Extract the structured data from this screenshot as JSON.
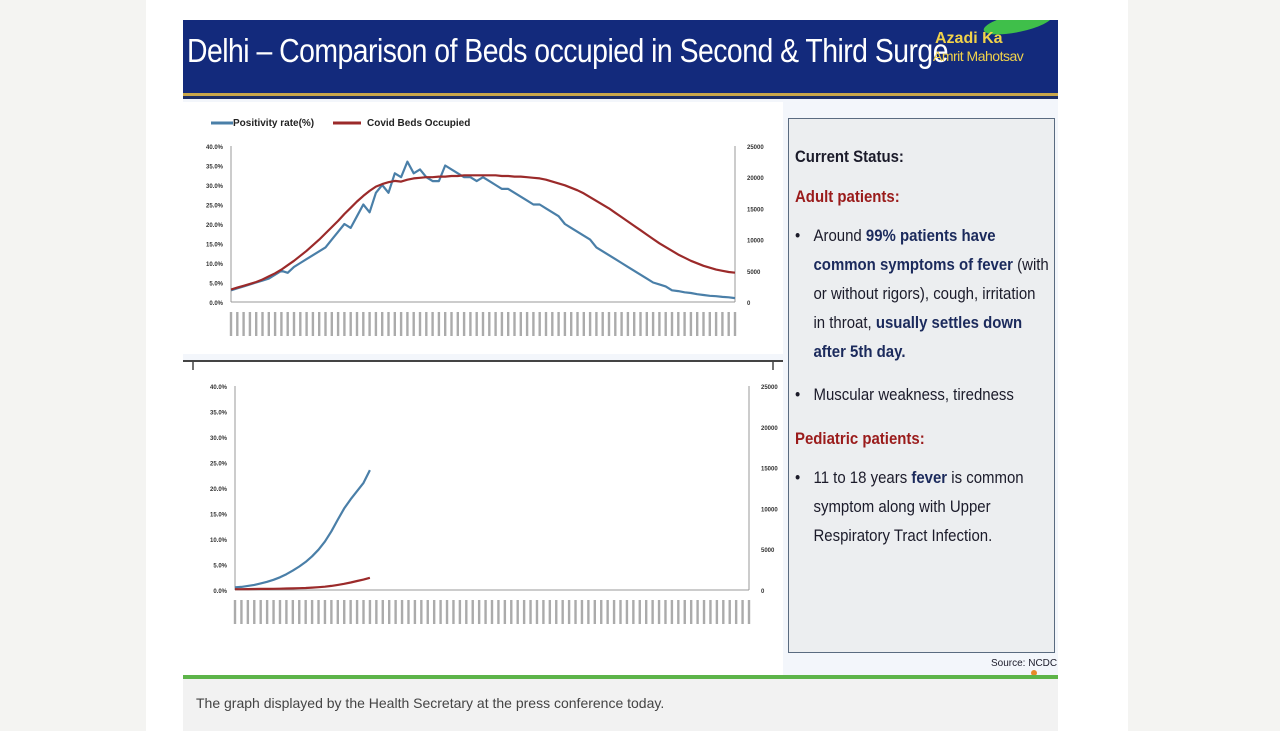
{
  "slide": {
    "title": "Delhi – Comparison of Beds occupied in Second & Third Surge",
    "logo_line1": "Azadi Ka",
    "logo_line2": "Amrit Mahotsav"
  },
  "status_panel": {
    "heading": "Current Status:",
    "adult_heading": "Adult patients:",
    "adult_items": [
      {
        "pre": "Around ",
        "bold": "99% patients have common symptoms of fever",
        "post": " (with or without rigors), cough, irritation in throat, ",
        "bold2": "usually settles down after 5th day."
      },
      {
        "pre": "Muscular weakness, tiredness"
      }
    ],
    "pediatric_heading": "Pediatric patients:",
    "pediatric_items": [
      {
        "pre": "11 to 18 years ",
        "bold": "fever",
        "post": " is common symptom along with Upper Respiratory Tract Infection."
      }
    ]
  },
  "source": "Source: NCDC",
  "caption": "The graph displayed by the Health Secretary at the press conference today.",
  "chart_data": [
    {
      "type": "line",
      "legend": [
        "Positivity rate(%)",
        "Covid Beds Occupied"
      ],
      "legend_position": "top-left",
      "left_ticks": [
        "40.0%",
        "35.0%",
        "30.0%",
        "25.0%",
        "20.0%",
        "15.0%",
        "10.0%",
        "5.0%",
        "0.0%"
      ],
      "right_ticks": [
        "25000",
        "20000",
        "15000",
        "10000",
        "5000",
        "0"
      ],
      "ylim_left": [
        0,
        40
      ],
      "ylim_right": [
        0,
        25000
      ],
      "series": [
        {
          "name": "Positivity rate(%)",
          "color": "#4a7fa8",
          "axis": "left",
          "values": [
            3,
            3.5,
            4,
            4.5,
            5,
            5.5,
            6,
            7,
            8,
            7.5,
            9,
            10,
            11,
            12,
            13,
            14,
            16,
            18,
            20,
            19,
            22,
            25,
            23,
            28,
            30,
            28,
            33,
            32,
            36,
            33,
            34,
            32,
            31,
            31,
            35,
            34,
            33,
            32,
            32,
            31,
            32,
            31,
            30,
            29,
            29,
            28,
            27,
            26,
            25,
            25,
            24,
            23,
            22,
            20,
            19,
            18,
            17,
            16,
            14,
            13,
            12,
            11,
            10,
            9,
            8,
            7,
            6,
            5,
            4.5,
            4,
            3,
            2.8,
            2.5,
            2.3,
            2,
            1.8,
            1.6,
            1.5,
            1.3,
            1.2,
            1
          ]
        },
        {
          "name": "Covid Beds Occupied",
          "color": "#9b2a2a",
          "axis": "right",
          "values": [
            2000,
            2300,
            2600,
            2900,
            3200,
            3600,
            4100,
            4600,
            5200,
            5900,
            6600,
            7400,
            8200,
            9100,
            10000,
            11000,
            12000,
            13000,
            14100,
            15100,
            16100,
            17000,
            17800,
            18500,
            18900,
            19200,
            19400,
            19300,
            19600,
            19800,
            19900,
            20000,
            20000,
            20100,
            20100,
            20200,
            20200,
            20300,
            20300,
            20300,
            20300,
            20300,
            20300,
            20200,
            20200,
            20100,
            20100,
            20000,
            19900,
            19800,
            19600,
            19300,
            19000,
            18700,
            18300,
            17900,
            17400,
            16800,
            16200,
            15600,
            15000,
            14300,
            13600,
            12900,
            12200,
            11500,
            10800,
            10100,
            9400,
            8800,
            8200,
            7600,
            7100,
            6600,
            6200,
            5800,
            5500,
            5200,
            5000,
            4800,
            4700
          ]
        }
      ],
      "x_points": 81
    },
    {
      "type": "line",
      "left_ticks": [
        "40.0%",
        "35.0%",
        "30.0%",
        "25.0%",
        "20.0%",
        "15.0%",
        "10.0%",
        "5.0%",
        "0.0%"
      ],
      "right_ticks": [
        "25000",
        "20000",
        "15000",
        "10000",
        "5000",
        "0"
      ],
      "ylim_left": [
        0,
        40
      ],
      "ylim_right": [
        0,
        25000
      ],
      "series": [
        {
          "name": "Positivity rate(%)",
          "color": "#4a7fa8",
          "axis": "left",
          "values": [
            0.5,
            0.6,
            0.8,
            1.0,
            1.3,
            1.6,
            2.0,
            2.5,
            3.1,
            3.8,
            4.6,
            5.5,
            6.6,
            7.9,
            9.5,
            11.5,
            13.8,
            16.0,
            17.8,
            19.4,
            21.0,
            23.5
          ]
        },
        {
          "name": "Covid Beds Occupied",
          "color": "#9b2a2a",
          "axis": "right",
          "values": [
            100,
            100,
            110,
            120,
            130,
            140,
            150,
            160,
            180,
            200,
            220,
            250,
            290,
            340,
            410,
            500,
            620,
            760,
            920,
            1100,
            1280,
            1500
          ]
        }
      ],
      "x_points": 81
    }
  ]
}
